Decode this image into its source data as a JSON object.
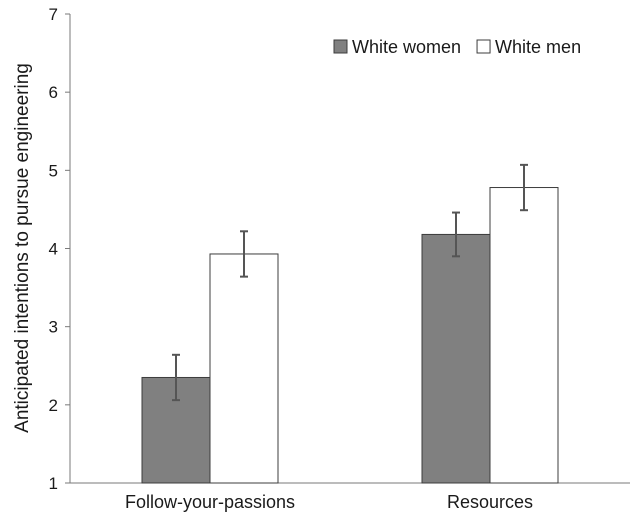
{
  "chart_data": {
    "type": "bar",
    "title": "",
    "xlabel": "",
    "ylabel": "Anticipated intentions to pursue engineering",
    "ylim": [
      1,
      7
    ],
    "yticks": [
      1,
      2,
      3,
      4,
      5,
      6,
      7
    ],
    "grid": false,
    "legend_position": "top-right",
    "categories": [
      "Follow-your-passions",
      "Resources"
    ],
    "series": [
      {
        "name": "White women",
        "color": "#808080",
        "values": [
          2.35,
          4.18
        ],
        "error": [
          0.29,
          0.28
        ]
      },
      {
        "name": "White men",
        "color": "#ffffff",
        "values": [
          3.93,
          4.78
        ],
        "error": [
          0.29,
          0.29
        ]
      }
    ]
  }
}
